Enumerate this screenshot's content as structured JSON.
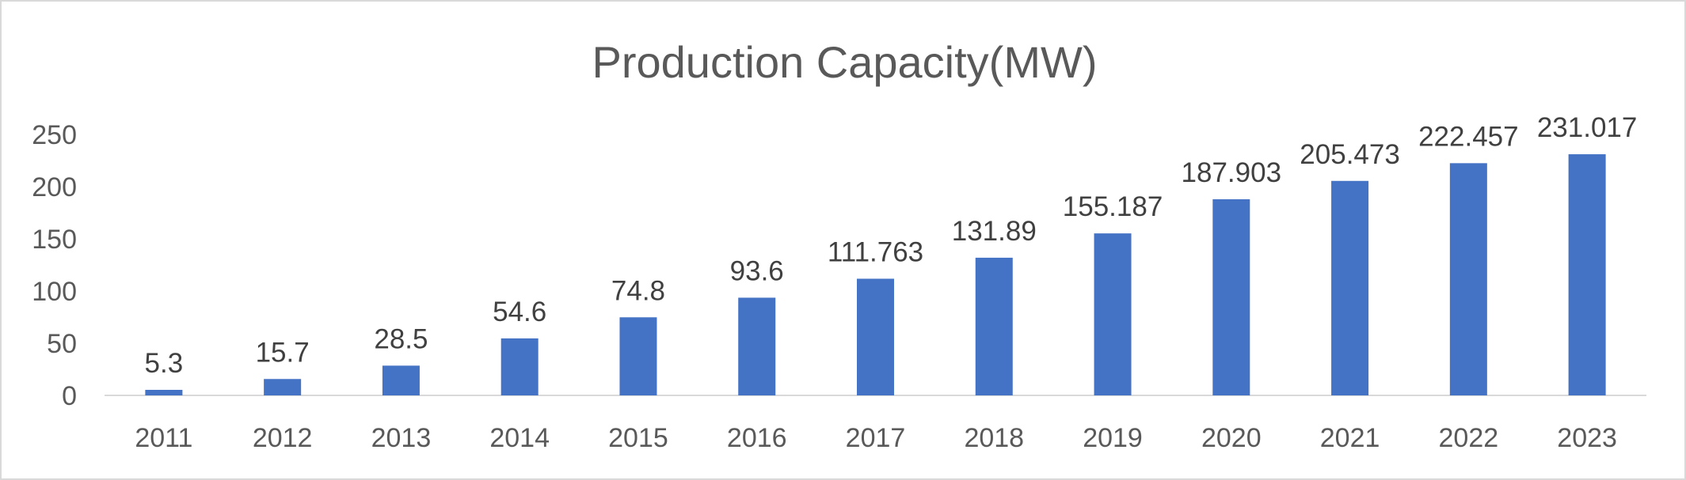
{
  "chart_data": {
    "type": "bar",
    "title": "Production Capacity(MW)",
    "xlabel": "",
    "ylabel": "",
    "categories": [
      "2011",
      "2012",
      "2013",
      "2014",
      "2015",
      "2016",
      "2017",
      "2018",
      "2019",
      "2020",
      "2021",
      "2022",
      "2023"
    ],
    "values": [
      5.3,
      15.7,
      28.5,
      54.6,
      74.8,
      93.6,
      111.763,
      131.89,
      155.187,
      187.903,
      205.473,
      222.457,
      231.017
    ],
    "data_labels": [
      "5.3",
      "15.7",
      "28.5",
      "54.6",
      "74.8",
      "93.6",
      "111.763",
      "131.89",
      "155.187",
      "187.903",
      "205.473",
      "222.457",
      "231.017"
    ],
    "ylim": [
      0,
      250
    ],
    "yticks": [
      "0",
      "50",
      "100",
      "150",
      "200",
      "250"
    ],
    "ytick_values": [
      0,
      50,
      100,
      150,
      200,
      250
    ],
    "grid": false,
    "legend": "none",
    "bar_color": "#4472C4",
    "axis_color": "#d9d9d9"
  }
}
